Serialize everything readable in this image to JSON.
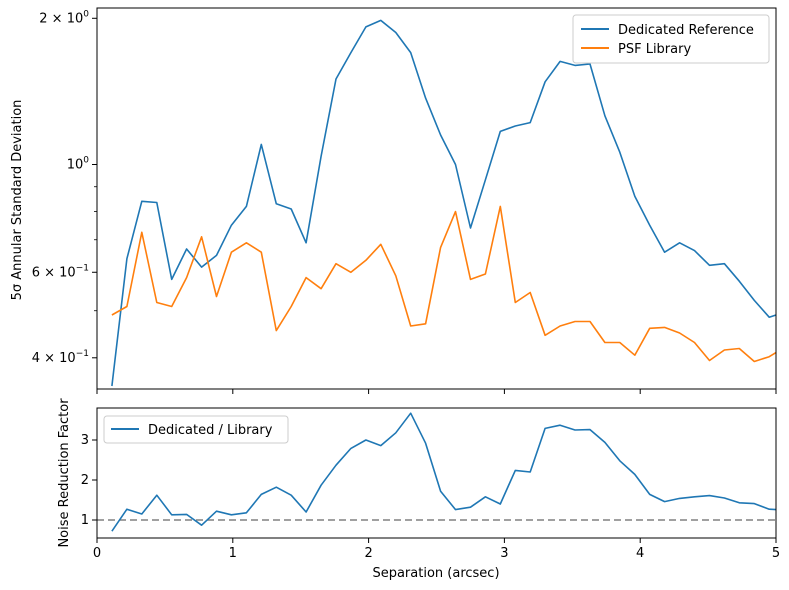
{
  "chart_data": [
    {
      "type": "line",
      "yscale": "log",
      "ylabel": "5σ Annular Standard Deviation",
      "xlim": [
        0,
        5
      ],
      "ylim": [
        0.345,
        2.1
      ],
      "yticks": [
        {
          "value": 0.4,
          "label_base": "4 × 10",
          "label_exp": "−1"
        },
        {
          "value": 0.6,
          "label_base": "6 × 10",
          "label_exp": "−1"
        },
        {
          "value": 1.0,
          "label_base": "10",
          "label_exp": "0"
        },
        {
          "value": 2.0,
          "label_base": "2 × 10",
          "label_exp": "0"
        }
      ],
      "minor_yticks": [
        0.5,
        0.7,
        0.8,
        0.9
      ],
      "legend_position": "upper right",
      "x": [
        0.11,
        0.22,
        0.33,
        0.44,
        0.55,
        0.66,
        0.77,
        0.88,
        0.99,
        1.1,
        1.21,
        1.32,
        1.43,
        1.54,
        1.65,
        1.76,
        1.87,
        1.98,
        2.09,
        2.2,
        2.31,
        2.42,
        2.53,
        2.64,
        2.75,
        2.86,
        2.97,
        3.08,
        3.19,
        3.3,
        3.41,
        3.52,
        3.63,
        3.74,
        3.85,
        3.96,
        4.07,
        4.18,
        4.29,
        4.4,
        4.51,
        4.62,
        4.73,
        4.84,
        4.95,
        5.0
      ],
      "series": [
        {
          "name": "Dedicated Reference",
          "color": "#1f77b4",
          "values": [
            0.35,
            0.64,
            0.84,
            0.835,
            0.58,
            0.67,
            0.615,
            0.65,
            0.75,
            0.82,
            1.1,
            0.83,
            0.81,
            0.69,
            1.04,
            1.5,
            1.7,
            1.92,
            1.98,
            1.87,
            1.7,
            1.37,
            1.15,
            1.0,
            0.74,
            0.93,
            1.17,
            1.2,
            1.22,
            1.48,
            1.63,
            1.6,
            1.61,
            1.26,
            1.06,
            0.86,
            0.75,
            0.66,
            0.69,
            0.665,
            0.62,
            0.625,
            0.575,
            0.525,
            0.485,
            0.49
          ]
        },
        {
          "name": "PSF Library",
          "color": "#ff7f0e",
          "values": [
            0.49,
            0.51,
            0.725,
            0.52,
            0.51,
            0.585,
            0.71,
            0.535,
            0.66,
            0.69,
            0.66,
            0.455,
            0.51,
            0.585,
            0.555,
            0.625,
            0.6,
            0.635,
            0.685,
            0.59,
            0.465,
            0.47,
            0.675,
            0.8,
            0.58,
            0.595,
            0.82,
            0.52,
            0.545,
            0.445,
            0.465,
            0.475,
            0.475,
            0.43,
            0.43,
            0.405,
            0.46,
            0.462,
            0.45,
            0.43,
            0.395,
            0.415,
            0.418,
            0.393,
            0.402,
            0.41
          ]
        }
      ]
    },
    {
      "type": "line",
      "xlabel": "Separation (arcsec)",
      "ylabel": "Noise Reduction Factor",
      "xlim": [
        0,
        5
      ],
      "ylim": [
        0.55,
        3.8
      ],
      "xticks": [
        0,
        1,
        2,
        3,
        4,
        5
      ],
      "xticklabels": [
        "0",
        "1",
        "2",
        "3",
        "4",
        "5"
      ],
      "yticks": [
        1,
        2,
        3
      ],
      "yticklabels": [
        "1",
        "2",
        "3"
      ],
      "reference_line": {
        "y": 1.0,
        "style": "dashed",
        "color": "#808080"
      },
      "legend_position": "upper left",
      "x": [
        0.11,
        0.22,
        0.33,
        0.44,
        0.55,
        0.66,
        0.77,
        0.88,
        0.99,
        1.1,
        1.21,
        1.32,
        1.43,
        1.54,
        1.65,
        1.76,
        1.87,
        1.98,
        2.09,
        2.2,
        2.31,
        2.42,
        2.53,
        2.64,
        2.75,
        2.86,
        2.97,
        3.08,
        3.19,
        3.3,
        3.41,
        3.52,
        3.63,
        3.74,
        3.85,
        3.96,
        4.07,
        4.18,
        4.29,
        4.4,
        4.51,
        4.62,
        4.73,
        4.84,
        4.95,
        5.0
      ],
      "series": [
        {
          "name": "Dedicated / Library",
          "color": "#1f77b4",
          "values": [
            0.72,
            1.27,
            1.15,
            1.62,
            1.13,
            1.14,
            0.87,
            1.22,
            1.13,
            1.18,
            1.64,
            1.82,
            1.62,
            1.2,
            1.87,
            2.37,
            2.79,
            3.0,
            2.86,
            3.18,
            3.67,
            2.92,
            1.72,
            1.26,
            1.32,
            1.58,
            1.4,
            2.24,
            2.2,
            3.29,
            3.37,
            3.25,
            3.26,
            2.94,
            2.48,
            2.14,
            1.64,
            1.46,
            1.54,
            1.58,
            1.61,
            1.55,
            1.43,
            1.41,
            1.27,
            1.26
          ]
        }
      ]
    }
  ]
}
